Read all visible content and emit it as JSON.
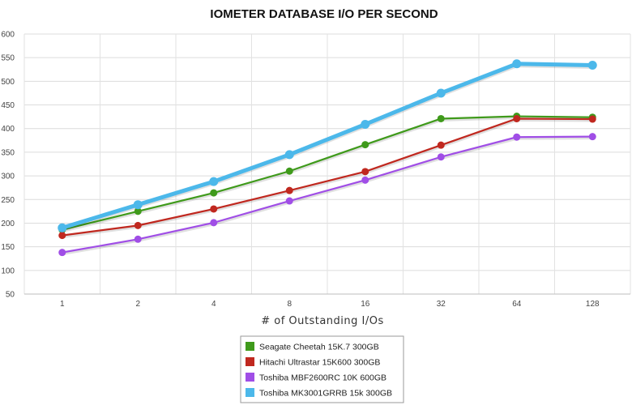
{
  "chart_data": {
    "type": "line",
    "title": "IOMETER DATABASE I/O PER SECOND",
    "xlabel": "# of Outstanding I/Os",
    "ylabel": "",
    "categories": [
      "1",
      "2",
      "4",
      "8",
      "16",
      "32",
      "64",
      "128"
    ],
    "ylim": [
      50,
      600
    ],
    "yticks": [
      50,
      100,
      150,
      200,
      250,
      300,
      350,
      400,
      450,
      500,
      550,
      600
    ],
    "grid": true,
    "legend_position": "bottom-center",
    "series": [
      {
        "name": "Seagate Cheetah 15K.7 300GB",
        "color": "#3f9a1b",
        "values": [
          186,
          225,
          264,
          310,
          366,
          421,
          426,
          424
        ]
      },
      {
        "name": "Hitachi Ultrastar 15K600 300GB",
        "color": "#c0281f",
        "values": [
          174,
          195,
          230,
          269,
          309,
          365,
          421,
          420
        ]
      },
      {
        "name": "Toshiba MBF2600RC 10K 600GB",
        "color": "#a04ee6",
        "values": [
          138,
          166,
          201,
          247,
          291,
          340,
          382,
          383
        ]
      },
      {
        "name": "Toshiba MK3001GRRB 15k 300GB",
        "color": "#4cb8ea",
        "values": [
          190,
          239,
          288,
          345,
          409,
          475,
          537,
          534
        ]
      }
    ]
  }
}
